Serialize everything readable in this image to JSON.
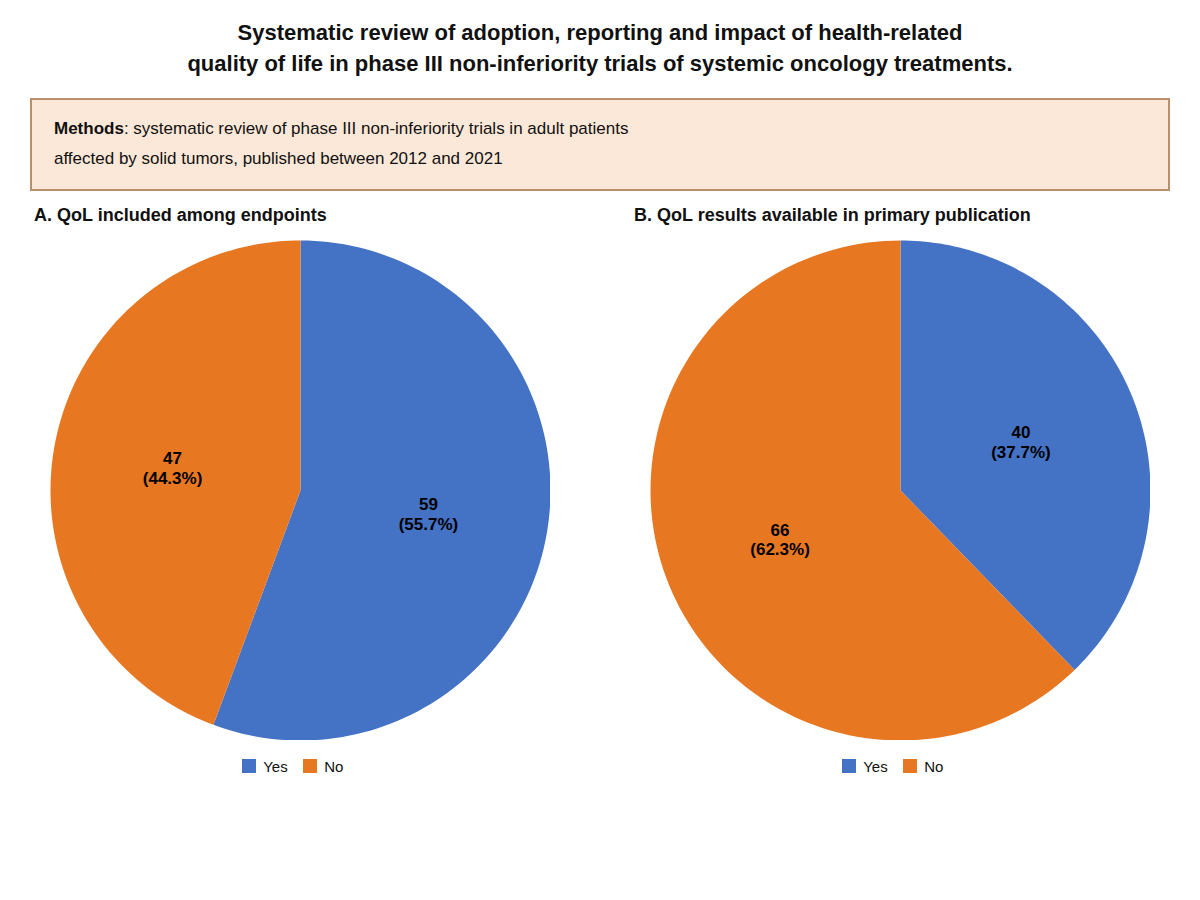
{
  "title": "Systematic review of adoption, reporting and impact of health-related\nquality of life in phase III non-inferiority trials of systemic oncology treatments.",
  "annotations": [
    {
      "label": "Methods",
      "text": ": systematic review of phase III non-inferiority trials in adult patients\naffected by solid tumors, published between 2012 and 2021",
      "colors": [
        "#fce8d8",
        "#b8906a"
      ]
    }
  ],
  "chart_data": [
    {
      "type": "pie",
      "title": "A. QoL included among endpoints",
      "categories": [
        "Yes",
        "No"
      ],
      "values": [
        59,
        47
      ],
      "value_labels": [
        "59\n(55.7%)",
        "47\n(44.3%)"
      ],
      "colors": [
        "#4472C4",
        "#E87722"
      ],
      "data_labels": true,
      "legend": "bottom"
    },
    {
      "type": "pie",
      "title": "B. QoL results available in primary publication",
      "categories": [
        "Yes",
        "No"
      ],
      "values": [
        40,
        66
      ],
      "value_labels": [
        "40\n(37.7%)",
        "66\n(62.3%)"
      ],
      "colors": [
        "#4472C4",
        "#E87722"
      ],
      "data_labels": true,
      "legend": "bottom"
    }
  ]
}
